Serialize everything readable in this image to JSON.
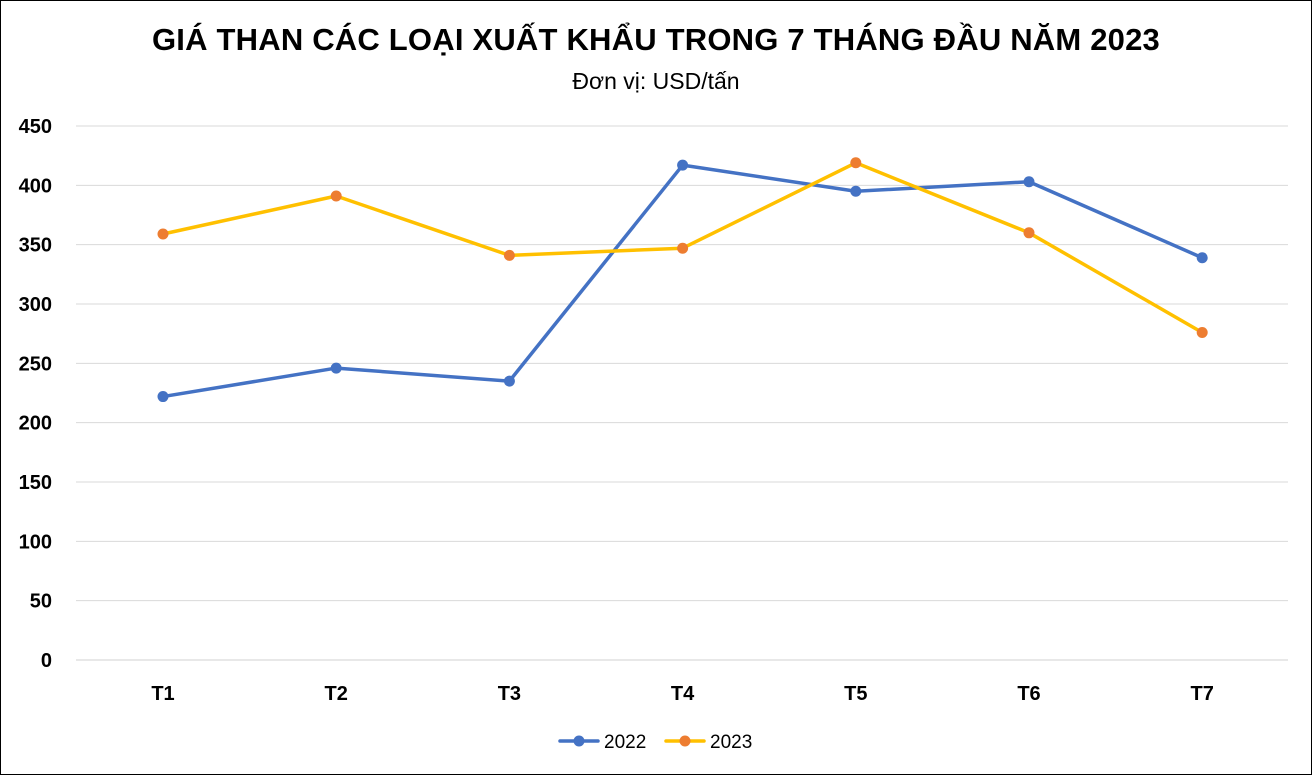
{
  "chart_data": {
    "type": "line",
    "title": "GIÁ THAN CÁC LOẠI XUẤT KHẨU TRONG 7 THÁNG ĐẦU NĂM 2023",
    "subtitle": "Đơn vị: USD/tấn",
    "xlabel": "",
    "ylabel": "",
    "categories": [
      "T1",
      "T2",
      "T3",
      "T4",
      "T5",
      "T6",
      "T7"
    ],
    "ylim": [
      0,
      450
    ],
    "yticks": [
      0,
      50,
      100,
      150,
      200,
      250,
      300,
      350,
      400,
      450
    ],
    "grid": true,
    "legend_position": "bottom",
    "series": [
      {
        "name": "2022",
        "color": "#4472C4",
        "values": [
          222,
          246,
          235,
          417,
          395,
          403,
          339
        ]
      },
      {
        "name": "2023",
        "color": "#FFC000",
        "marker_color": "#ED7D31",
        "values": [
          359,
          391,
          341,
          347,
          419,
          360,
          276
        ]
      }
    ]
  }
}
